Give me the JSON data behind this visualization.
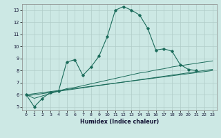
{
  "xlabel": "Humidex (Indice chaleur)",
  "bg_color": "#cce8e4",
  "grid_color": "#b0ccc8",
  "line_color": "#1a6b5a",
  "xlim_min": -0.5,
  "xlim_max": 23.5,
  "ylim_min": 4.7,
  "ylim_max": 13.5,
  "yticks": [
    5,
    6,
    7,
    8,
    9,
    10,
    11,
    12,
    13
  ],
  "xticks": [
    0,
    1,
    2,
    3,
    4,
    5,
    6,
    7,
    8,
    9,
    10,
    11,
    12,
    13,
    14,
    15,
    16,
    17,
    18,
    19,
    20,
    21,
    22,
    23
  ],
  "series1_x": [
    0,
    1,
    2,
    3,
    4,
    5,
    6,
    7,
    8,
    9,
    10,
    11,
    12,
    13,
    14,
    15,
    16,
    17,
    18,
    19,
    20,
    21
  ],
  "series1_y": [
    6.0,
    5.0,
    5.7,
    6.2,
    6.3,
    8.7,
    8.9,
    7.6,
    8.3,
    9.2,
    10.8,
    13.0,
    13.3,
    13.0,
    12.6,
    11.5,
    9.7,
    9.8,
    9.6,
    8.5,
    8.1,
    8.0
  ],
  "series2_x": [
    0,
    1,
    2,
    3,
    4,
    5,
    6,
    7,
    8,
    9,
    10,
    11,
    12,
    13,
    14,
    15,
    16,
    17,
    18,
    19,
    20,
    21,
    22,
    23
  ],
  "series2_y": [
    6.0,
    5.7,
    5.9,
    6.1,
    6.3,
    6.5,
    6.6,
    6.75,
    6.9,
    7.05,
    7.2,
    7.35,
    7.5,
    7.65,
    7.8,
    7.9,
    8.05,
    8.15,
    8.3,
    8.4,
    8.5,
    8.6,
    8.7,
    8.8
  ],
  "line3_x": [
    0,
    23
  ],
  "line3_y": [
    6.0,
    8.0
  ],
  "line4_x": [
    0,
    23
  ],
  "line4_y": [
    5.9,
    8.1
  ]
}
